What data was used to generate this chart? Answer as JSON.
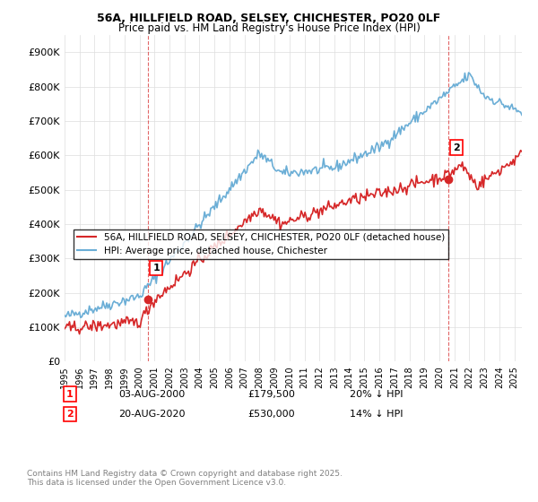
{
  "title_line1": "56A, HILLFIELD ROAD, SELSEY, CHICHESTER, PO20 0LF",
  "title_line2": "Price paid vs. HM Land Registry's House Price Index (HPI)",
  "ylabel_ticks": [
    "£0",
    "£100K",
    "£200K",
    "£300K",
    "£400K",
    "£500K",
    "£600K",
    "£700K",
    "£800K",
    "£900K"
  ],
  "ytick_values": [
    0,
    100000,
    200000,
    300000,
    400000,
    500000,
    600000,
    700000,
    800000,
    900000
  ],
  "ylim": [
    0,
    950000
  ],
  "xlim_start": 1995.0,
  "xlim_end": 2025.5,
  "xtick_years": [
    1995,
    1996,
    1997,
    1998,
    1999,
    2000,
    2001,
    2002,
    2003,
    2004,
    2005,
    2006,
    2007,
    2008,
    2009,
    2010,
    2011,
    2012,
    2013,
    2014,
    2015,
    2016,
    2017,
    2018,
    2019,
    2020,
    2021,
    2022,
    2023,
    2024,
    2025
  ],
  "hpi_color": "#6baed6",
  "price_color": "#d62728",
  "marker1_x": 2000.58,
  "marker1_y": 179500,
  "marker1_label": "1",
  "marker1_text": "03-AUG-2000    £179,500    20% ↓ HPI",
  "marker2_x": 2020.62,
  "marker2_y": 530000,
  "marker2_label": "2",
  "marker2_text": "20-AUG-2020    £530,000    14% ↓ HPI",
  "legend_line1": "56A, HILLFIELD ROAD, SELSEY, CHICHESTER, PO20 0LF (detached house)",
  "legend_line2": "HPI: Average price, detached house, Chichester",
  "footnote": "Contains HM Land Registry data © Crown copyright and database right 2025.\nThis data is licensed under the Open Government Licence v3.0.",
  "background_color": "#ffffff",
  "grid_color": "#dddddd"
}
